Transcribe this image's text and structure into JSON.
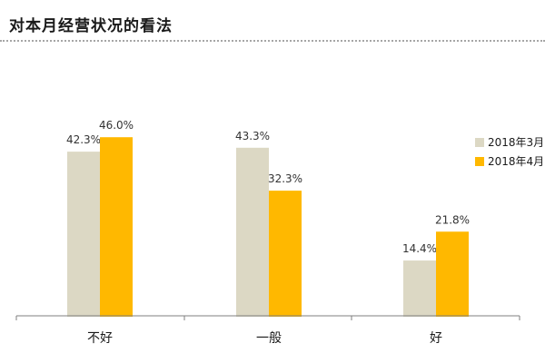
{
  "page": {
    "title": "对本月经营状况的看法"
  },
  "colors": {
    "series_0": "#dcd8c4",
    "series_1": "#ffb800",
    "axis": "#7f7f7f",
    "title_rule": "#a6a6a6"
  },
  "chart_data": {
    "type": "bar",
    "title": "对本月经营状况的看法",
    "xlabel": "",
    "ylabel": "",
    "categories": [
      "不好",
      "一般",
      "好"
    ],
    "series": [
      {
        "name": "2018年3月",
        "values": [
          42.3,
          43.3,
          14.4
        ],
        "labels": [
          "42.3%",
          "43.3%",
          "14.4%"
        ]
      },
      {
        "name": "2018年4月",
        "values": [
          46.0,
          32.3,
          21.8
        ],
        "labels": [
          "46.0%",
          "32.3%",
          "21.8%"
        ]
      }
    ],
    "ylim": [
      0,
      50
    ],
    "grid": false,
    "legend_position": "right"
  }
}
